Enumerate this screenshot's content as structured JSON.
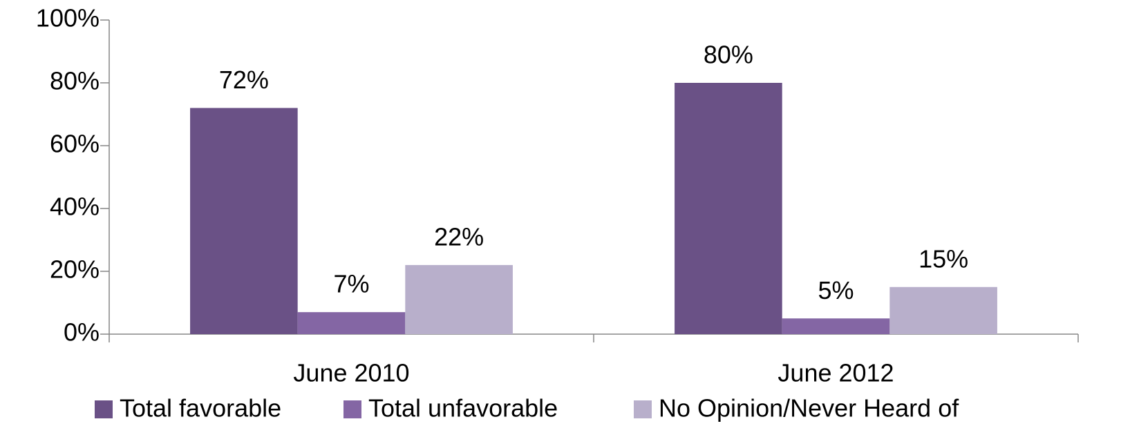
{
  "chart_data": {
    "type": "bar",
    "categories": [
      "June 2010",
      "June 2012"
    ],
    "series": [
      {
        "name": "Total favorable",
        "color": "#6a5186",
        "values": [
          72,
          80
        ],
        "value_labels": [
          "72%",
          "80%"
        ]
      },
      {
        "name": "Total unfavorable",
        "color": "#8466a4",
        "values": [
          7,
          5
        ],
        "value_labels": [
          "7%",
          "5%"
        ]
      },
      {
        "name": "No Opinion/Never Heard of",
        "color": "#b8afcb",
        "values": [
          22,
          15
        ],
        "value_labels": [
          "22%",
          "15%"
        ]
      }
    ],
    "ylim": [
      0,
      100
    ],
    "yticks": [
      {
        "value": 0,
        "label": "0%"
      },
      {
        "value": 20,
        "label": "20%"
      },
      {
        "value": 40,
        "label": "40%"
      },
      {
        "value": 60,
        "label": "60%"
      },
      {
        "value": 80,
        "label": "80%"
      },
      {
        "value": 100,
        "label": "100%"
      }
    ],
    "grid": false,
    "legend": "bottom"
  }
}
